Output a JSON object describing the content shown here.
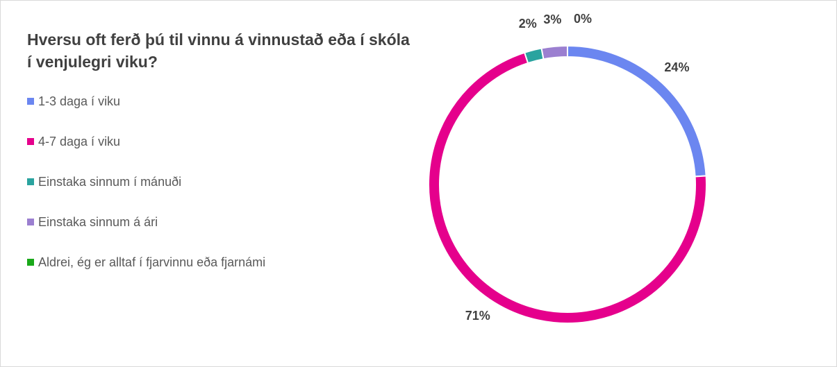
{
  "chart_data": {
    "type": "pie",
    "title": "Hversu oft ferð þú til vinnu á vinnustað eða í skóla í venjulegri viku?",
    "categories": [
      "1-3 daga í viku",
      "4-7 daga í viku",
      "Einstaka sinnum í mánuði",
      "Einstaka sinnum á ári",
      "Aldrei, ég er alltaf í fjarvinnu eða fjarnámi"
    ],
    "values": [
      24,
      71,
      2,
      3,
      0
    ],
    "value_labels": [
      "24%",
      "71%",
      "2%",
      "3%",
      "0%"
    ],
    "colors": [
      "#6b86f0",
      "#e5008c",
      "#2aa39f",
      "#9b7fd0",
      "#1aa81a"
    ],
    "donut": true,
    "legend": "left"
  }
}
